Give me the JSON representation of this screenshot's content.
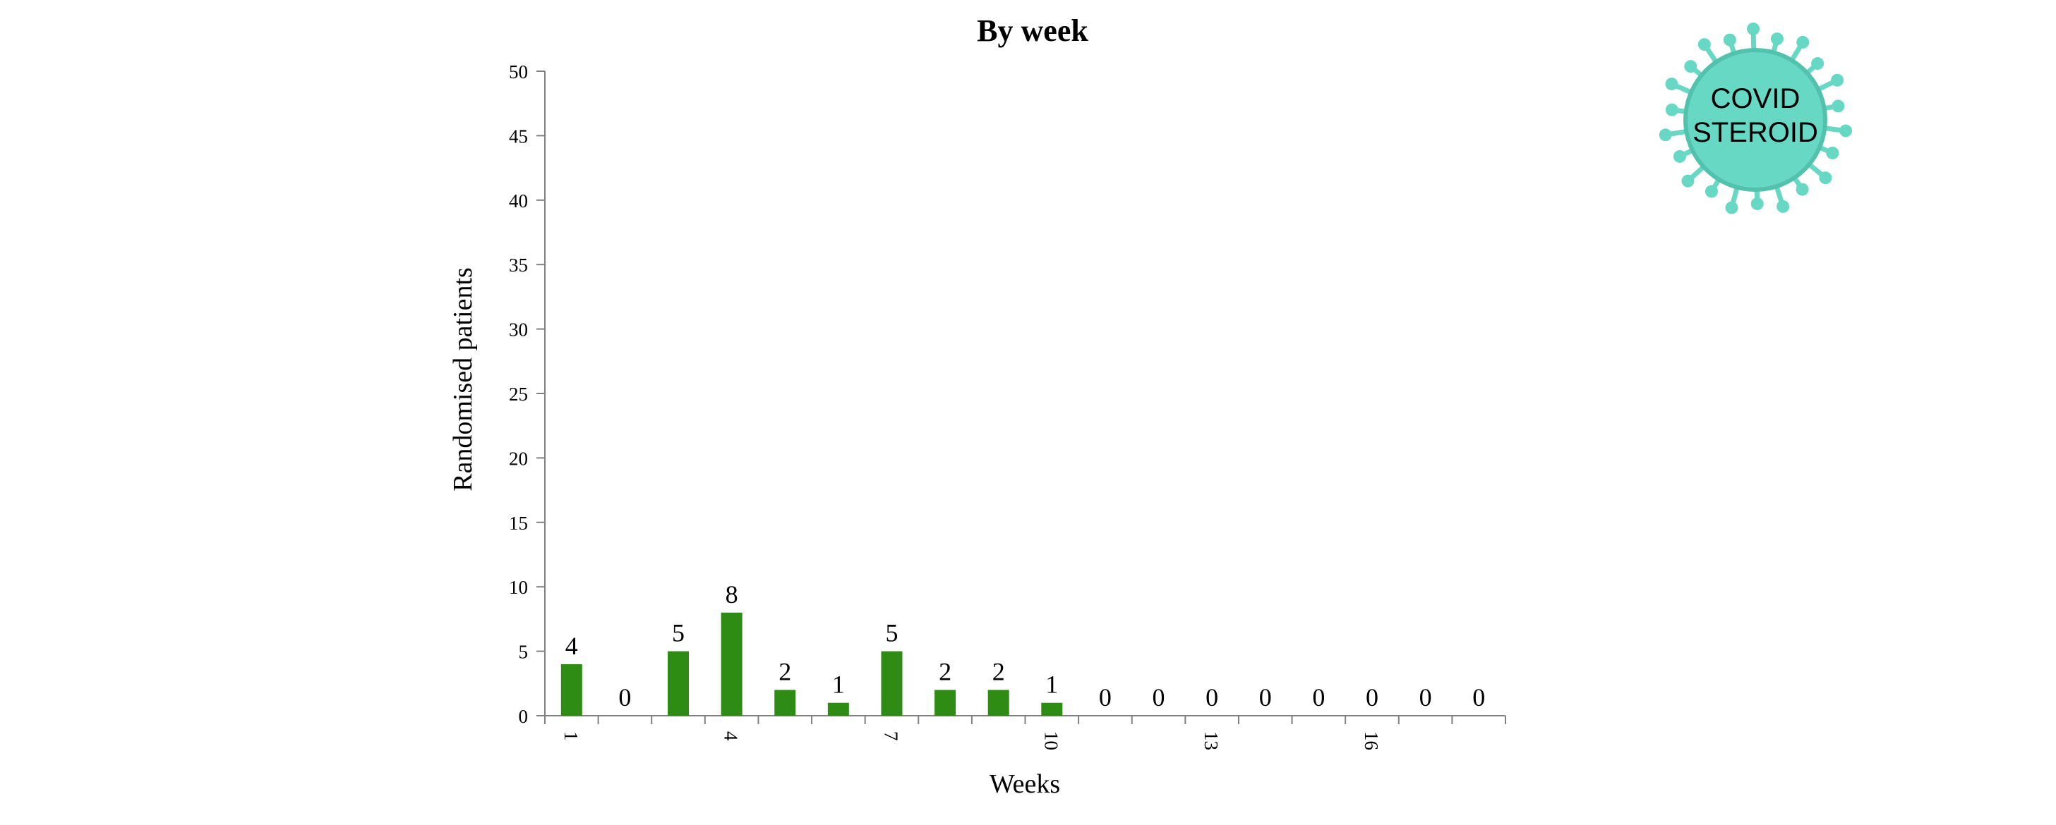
{
  "logo": {
    "line1": "COVID",
    "line2": "STEROID",
    "color": "#67d8c4",
    "ring_color": "#52c2ad"
  },
  "chart_data": {
    "type": "bar",
    "title": "By week",
    "xlabel": "Weeks",
    "ylabel": "Randomised patients",
    "categories": [
      1,
      2,
      3,
      4,
      5,
      6,
      7,
      8,
      9,
      10,
      11,
      12,
      13,
      14,
      15,
      16,
      17,
      18
    ],
    "values": [
      4,
      0,
      5,
      8,
      2,
      1,
      5,
      2,
      2,
      1,
      0,
      0,
      0,
      0,
      0,
      0,
      0,
      0
    ],
    "data_labels": [
      "4",
      "0",
      "5",
      "8",
      "2",
      "1",
      "5",
      "2",
      "2",
      "1",
      "0",
      "0",
      "0",
      "0",
      "0",
      "0",
      "0",
      "0"
    ],
    "xtick_labels": [
      "1",
      "4",
      "7",
      "10",
      "13",
      "16"
    ],
    "xtick_values": [
      1,
      4,
      7,
      10,
      13,
      16
    ],
    "ylim": [
      0,
      50
    ],
    "yticks": [
      0,
      5,
      10,
      15,
      20,
      25,
      30,
      35,
      40,
      45,
      50
    ],
    "ytick_labels": [
      "0",
      "5",
      "10",
      "15",
      "20",
      "25",
      "30",
      "35",
      "40",
      "45",
      "50"
    ],
    "grid": false,
    "legend": "none",
    "bar_color": "#2e8b14",
    "axis_color": "#808080"
  }
}
